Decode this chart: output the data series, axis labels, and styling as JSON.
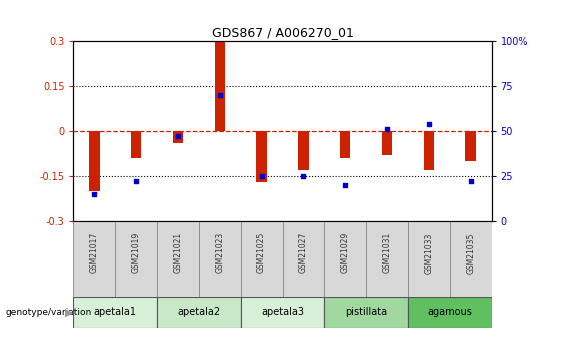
{
  "title": "GDS867 / A006270_01",
  "samples": [
    "GSM21017",
    "GSM21019",
    "GSM21021",
    "GSM21023",
    "GSM21025",
    "GSM21027",
    "GSM21029",
    "GSM21031",
    "GSM21033",
    "GSM21035"
  ],
  "log_ratios": [
    -0.2,
    -0.09,
    -0.04,
    0.3,
    -0.17,
    -0.13,
    -0.09,
    -0.08,
    -0.13,
    -0.1
  ],
  "percentile_ranks": [
    15,
    22,
    47,
    70,
    25,
    25,
    20,
    51,
    54,
    22
  ],
  "groups": [
    {
      "label": "apetala1",
      "indices": [
        0,
        1
      ],
      "color": "#d8f0d8"
    },
    {
      "label": "apetala2",
      "indices": [
        2,
        3
      ],
      "color": "#c8e8c8"
    },
    {
      "label": "apetala3",
      "indices": [
        4,
        5
      ],
      "color": "#d8f0d8"
    },
    {
      "label": "pistillata",
      "indices": [
        6,
        7
      ],
      "color": "#a0d8a0"
    },
    {
      "label": "agamous",
      "indices": [
        8,
        9
      ],
      "color": "#60c060"
    }
  ],
  "ylim": [
    -0.3,
    0.3
  ],
  "yticks": [
    -0.3,
    -0.15,
    0.0,
    0.15,
    0.3
  ],
  "y2ticks": [
    0,
    25,
    50,
    75,
    100
  ],
  "bar_color": "#cc2200",
  "dot_color": "#0000cc",
  "zero_line_color": "#cc2200",
  "grid_color": "#000000",
  "sample_bg_color": "#d8d8d8",
  "y_left_color": "#cc2200",
  "y_right_color": "#0000cc",
  "legend_log_ratio_color": "#cc2200",
  "legend_percentile_color": "#0000cc"
}
